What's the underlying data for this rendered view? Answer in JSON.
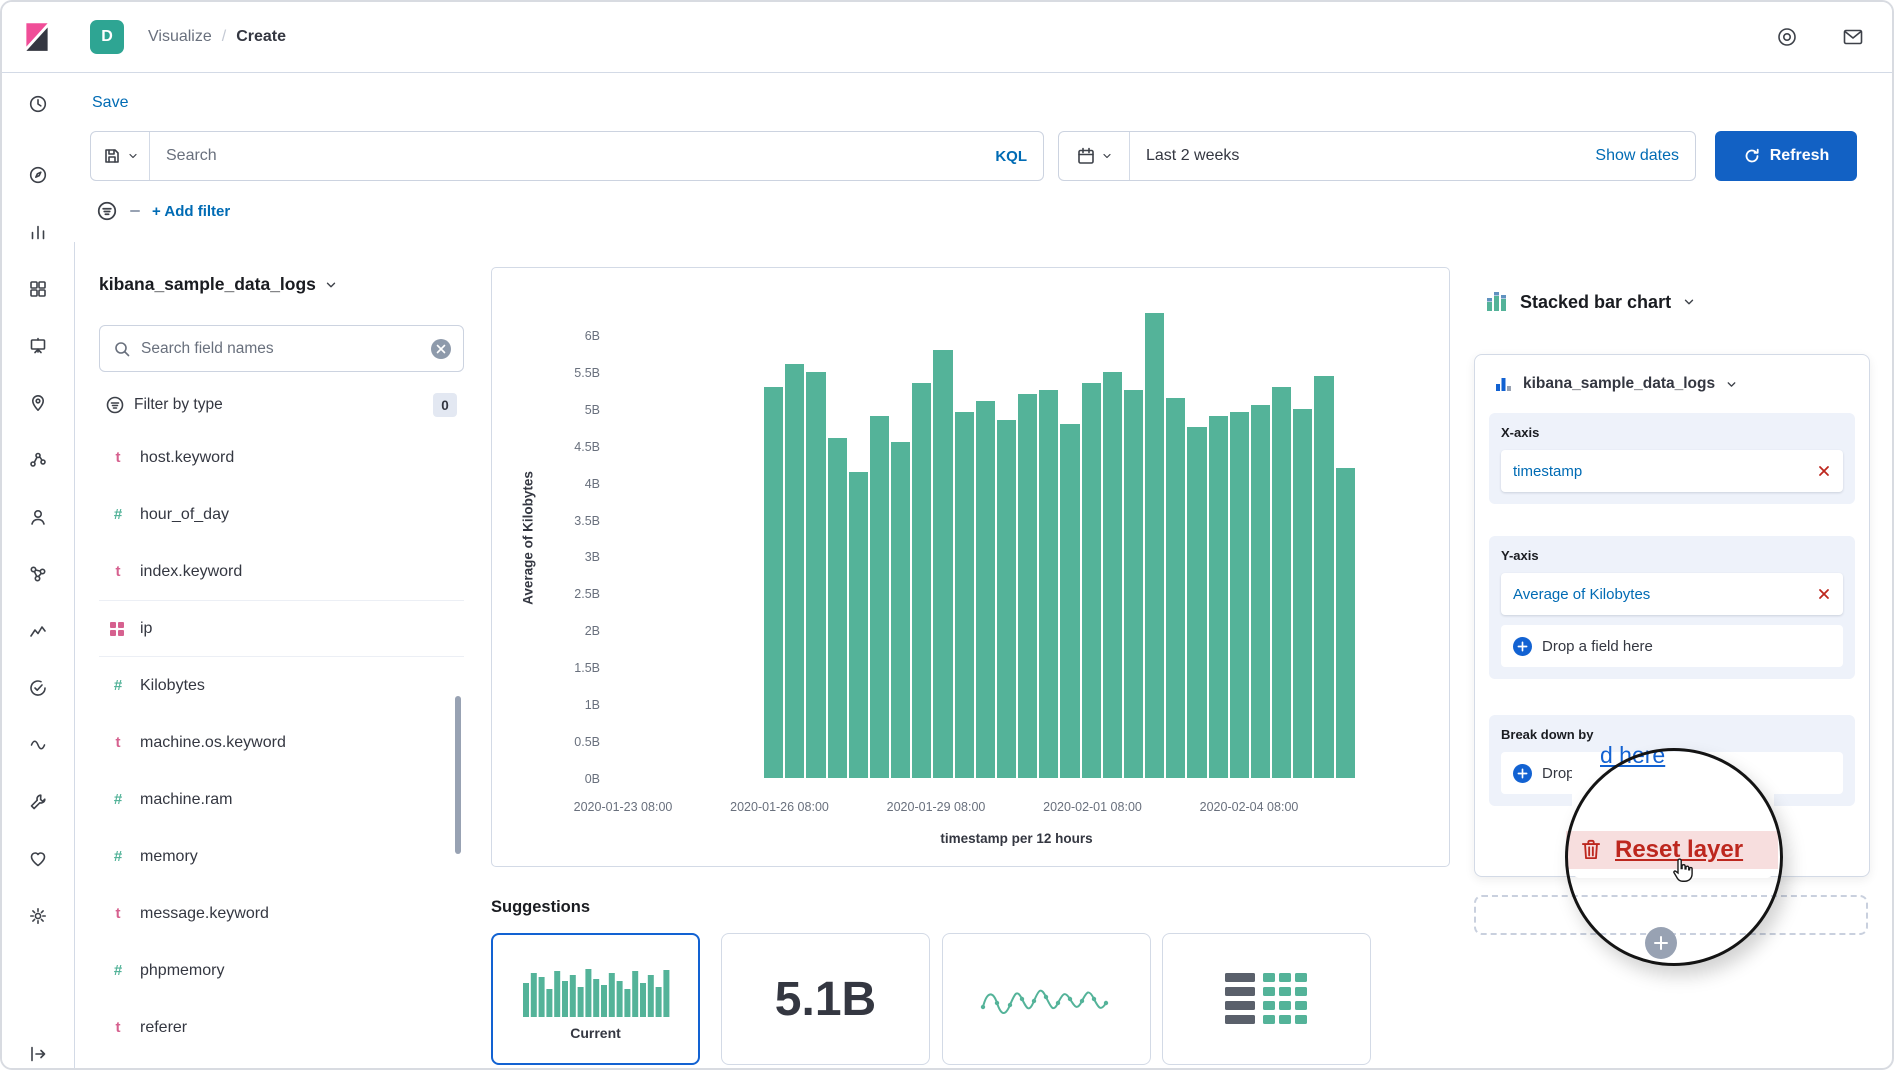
{
  "header": {
    "space_initial": "D",
    "breadcrumb_section": "Visualize",
    "breadcrumb_sep": "/",
    "breadcrumb_current": "Create"
  },
  "toolbar": {
    "save": "Save",
    "search_placeholder": "Search",
    "kql": "KQL",
    "time_range": "Last 2 weeks",
    "show_dates": "Show dates",
    "refresh": "Refresh",
    "add_filter": "+ Add filter"
  },
  "nav_rail": {
    "items": [
      "recently-viewed",
      "discover",
      "visualize",
      "dashboard",
      "canvas",
      "maps",
      "machine-learning",
      "users",
      "graph",
      "metrics",
      "uptime",
      "apm",
      "dev-tools",
      "stack-monitoring",
      "management",
      "collapse-menu"
    ]
  },
  "field_panel": {
    "data_view": "kibana_sample_data_logs",
    "search_placeholder": "Search field names",
    "filter_by_type": "Filter by type",
    "filter_count": "0",
    "fields": [
      {
        "type": "t",
        "name": "host.keyword"
      },
      {
        "type": "#",
        "name": "hour_of_day"
      },
      {
        "type": "t",
        "name": "index.keyword"
      },
      {
        "type": "ip",
        "name": "ip"
      },
      {
        "type": "#",
        "name": "Kilobytes"
      },
      {
        "type": "t",
        "name": "machine.os.keyword"
      },
      {
        "type": "#",
        "name": "machine.ram"
      },
      {
        "type": "#",
        "name": "memory"
      },
      {
        "type": "t",
        "name": "message.keyword"
      },
      {
        "type": "#",
        "name": "phpmemory"
      },
      {
        "type": "t",
        "name": "referer"
      }
    ]
  },
  "chart_data": {
    "type": "bar",
    "title": "",
    "ylabel": "Average of Kilobytes",
    "xlabel": "timestamp per 12 hours",
    "unit": "B",
    "ylim": [
      0,
      6.5
    ],
    "grid": false,
    "legend": false,
    "bar_color": "#54B399",
    "y_ticks": [
      "0B",
      "0.5B",
      "1B",
      "1.5B",
      "2B",
      "2.5B",
      "3B",
      "3.5B",
      "4B",
      "4.5B",
      "5B",
      "5.5B",
      "6B"
    ],
    "x_ticks": [
      "2020-01-23 08:00",
      "2020-01-26 08:00",
      "2020-01-29 08:00",
      "2020-02-01 08:00",
      "2020-02-04 08:00"
    ],
    "series": [
      {
        "name": "Average of Kilobytes",
        "values": [
          5.3,
          5.6,
          5.5,
          4.6,
          4.15,
          4.9,
          4.55,
          5.35,
          5.8,
          4.95,
          5.1,
          4.85,
          5.2,
          5.25,
          4.8,
          5.35,
          5.5,
          5.25,
          6.3,
          5.15,
          4.75,
          4.9,
          4.95,
          5.05,
          5.3,
          5.0,
          5.45,
          4.2
        ]
      }
    ]
  },
  "suggestions": {
    "title": "Suggestions",
    "current": "Current",
    "metric": "5.1B"
  },
  "config": {
    "chart_type": "Stacked bar chart",
    "layer_source": "kibana_sample_data_logs",
    "x_label": "X-axis",
    "x_dimension": "timestamp",
    "y_label": "Y-axis",
    "y_dimension": "Average of Kilobytes",
    "drop_field": "Drop a field here",
    "break_label": "Break down by",
    "mag_fragment": "d here",
    "reset_layer": "Reset layer"
  },
  "colors": {
    "link_blue": "#006BB4",
    "vivid_blue": "#1262D2",
    "bar_green": "#54B399",
    "danger_red": "#BD271E",
    "avatar_teal": "#2EA593"
  }
}
